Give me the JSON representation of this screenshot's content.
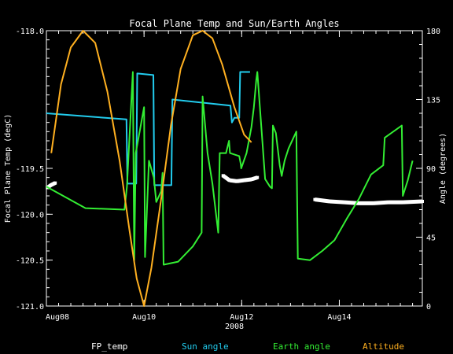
{
  "chart_data": {
    "type": "line",
    "title": "Focal Plane Temp and Sun/Earth Angles",
    "xlabel": "2008",
    "ylabel_left": "Focal Plane Temp (degC)",
    "ylabel_right": "Angle (degrees)",
    "x_unit": "days since Aug 08 2008",
    "xlim": [
      0,
      7.7
    ],
    "ylim_left": [
      -121.0,
      -118.0
    ],
    "ylim_right": [
      0,
      180
    ],
    "x_ticks": [
      {
        "x": 0,
        "label": "Aug08"
      },
      {
        "x": 2,
        "label": "Aug10"
      },
      {
        "x": 4,
        "label": "Aug12"
      },
      {
        "x": 6,
        "label": "Aug14"
      }
    ],
    "y_ticks_left": [
      "-118.0",
      "-119.5",
      "-120.0",
      "-120.5",
      "-121.0"
    ],
    "y_tick_values_left": [
      -118.0,
      -119.5,
      -120.0,
      -120.5,
      -121.0
    ],
    "y_ticks_right": [
      "180",
      "135",
      "90",
      "45",
      "0"
    ],
    "y_tick_values_right": [
      180,
      135,
      90,
      45,
      0
    ],
    "series": [
      {
        "name": "FP_temp",
        "color": "#ffffff",
        "axis": "left",
        "style": "scatter",
        "points": [
          [
            0.02,
            -119.71
          ],
          [
            0.1,
            -119.68
          ],
          [
            0.18,
            -119.66
          ],
          [
            3.62,
            -119.58
          ],
          [
            3.75,
            -119.63
          ],
          [
            3.9,
            -119.64
          ],
          [
            4.05,
            -119.63
          ],
          [
            4.2,
            -119.62
          ],
          [
            4.32,
            -119.6
          ],
          [
            5.5,
            -119.84
          ],
          [
            5.8,
            -119.86
          ],
          [
            6.1,
            -119.87
          ],
          [
            6.4,
            -119.88
          ],
          [
            6.7,
            -119.88
          ],
          [
            7.0,
            -119.87
          ],
          [
            7.3,
            -119.87
          ],
          [
            7.7,
            -119.86
          ]
        ]
      },
      {
        "name": "Sun angle",
        "color": "#22ccee",
        "axis": "right",
        "points": [
          [
            0,
            126
          ],
          [
            1.64,
            122
          ],
          [
            1.66,
            80
          ],
          [
            1.84,
            80
          ],
          [
            1.86,
            152
          ],
          [
            2.19,
            151
          ],
          [
            2.21,
            79
          ],
          [
            2.56,
            79
          ],
          [
            2.58,
            135
          ],
          [
            3.77,
            131
          ],
          [
            3.8,
            120
          ],
          [
            3.85,
            123
          ],
          [
            3.95,
            123
          ],
          [
            3.97,
            153
          ],
          [
            4.17,
            153
          ]
        ]
      },
      {
        "name": "Earth angle",
        "color": "#33ee33",
        "axis": "right",
        "points": [
          [
            0,
            78
          ],
          [
            0.8,
            64
          ],
          [
            1.6,
            63
          ],
          [
            1.65,
            78
          ],
          [
            1.77,
            153
          ],
          [
            1.8,
            30
          ],
          [
            1.83,
            100
          ],
          [
            2.0,
            130
          ],
          [
            2.02,
            32
          ],
          [
            2.1,
            95
          ],
          [
            2.2,
            84
          ],
          [
            2.25,
            68
          ],
          [
            2.35,
            75
          ],
          [
            2.38,
            87
          ],
          [
            2.4,
            27
          ],
          [
            2.7,
            29
          ],
          [
            3.0,
            39
          ],
          [
            3.18,
            48
          ],
          [
            3.2,
            137
          ],
          [
            3.3,
            100
          ],
          [
            3.4,
            80
          ],
          [
            3.52,
            48
          ],
          [
            3.55,
            100
          ],
          [
            3.68,
            100
          ],
          [
            3.74,
            108
          ],
          [
            3.76,
            100
          ],
          [
            3.95,
            98
          ],
          [
            3.98,
            93
          ],
          [
            3.99,
            90
          ],
          [
            4.1,
            100
          ],
          [
            4.2,
            117
          ],
          [
            4.25,
            130
          ],
          [
            4.3,
            148
          ],
          [
            4.32,
            153
          ],
          [
            4.48,
            83
          ],
          [
            4.58,
            78
          ],
          [
            4.62,
            77
          ],
          [
            4.64,
            118
          ],
          [
            4.7,
            113
          ],
          [
            4.78,
            92
          ],
          [
            4.82,
            85
          ],
          [
            4.88,
            95
          ],
          [
            4.96,
            103
          ],
          [
            5.12,
            114
          ],
          [
            5.15,
            31
          ],
          [
            5.4,
            30
          ],
          [
            5.65,
            36
          ],
          [
            5.9,
            43
          ],
          [
            6.15,
            57
          ],
          [
            6.4,
            70
          ],
          [
            6.65,
            86
          ],
          [
            6.9,
            92
          ],
          [
            6.93,
            110
          ],
          [
            7.28,
            118
          ],
          [
            7.3,
            72
          ],
          [
            7.4,
            82
          ],
          [
            7.5,
            95
          ]
        ]
      },
      {
        "name": "Altitude",
        "color": "#ffb020",
        "axis": "right",
        "points": [
          [
            0.1,
            100
          ],
          [
            0.3,
            145
          ],
          [
            0.5,
            169
          ],
          [
            0.75,
            180
          ],
          [
            1.0,
            172
          ],
          [
            1.25,
            140
          ],
          [
            1.5,
            95
          ],
          [
            1.7,
            50
          ],
          [
            1.85,
            18
          ],
          [
            2.0,
            0
          ],
          [
            2.15,
            25
          ],
          [
            2.35,
            70
          ],
          [
            2.55,
            118
          ],
          [
            2.75,
            155
          ],
          [
            3.0,
            177
          ],
          [
            3.2,
            180
          ],
          [
            3.4,
            175
          ],
          [
            3.6,
            158
          ],
          [
            3.85,
            130
          ],
          [
            4.05,
            112
          ],
          [
            4.2,
            107
          ]
        ]
      }
    ]
  }
}
